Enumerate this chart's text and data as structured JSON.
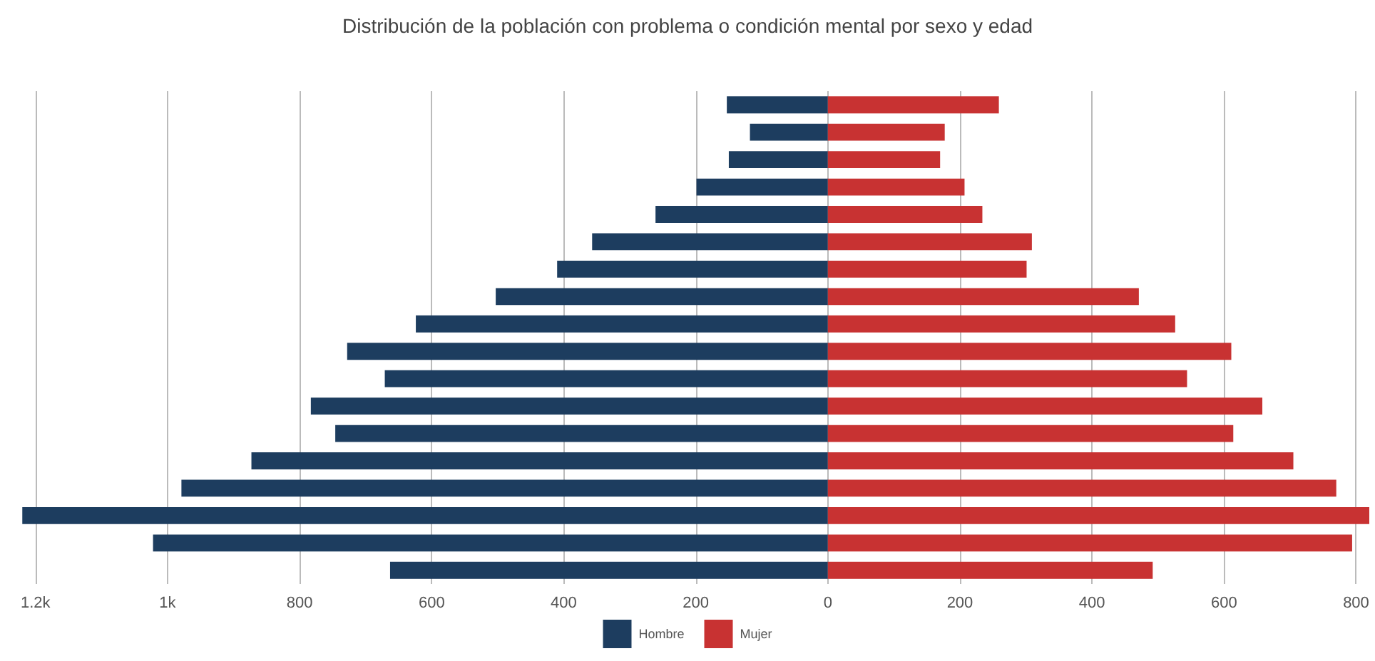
{
  "chart_data": {
    "type": "bar",
    "title": "Distribución de la población con problema o condición mental por sexo y edad",
    "orientation": "horizontal",
    "stacked": true,
    "categories": [
      null,
      null,
      null,
      null,
      null,
      null,
      null,
      null,
      null,
      null,
      null,
      null,
      null,
      null,
      null,
      null,
      null,
      null
    ],
    "series": [
      {
        "name": "Hombre",
        "color": "#1d3d5f",
        "values": [
          -153,
          -118,
          -150,
          -199,
          -261,
          -357,
          -410,
          -503,
          -624,
          -728,
          -671,
          -783,
          -746,
          -873,
          -979,
          -1220,
          -1022,
          -663
        ]
      },
      {
        "name": "Mujer",
        "color": "#c83232",
        "values": [
          259,
          177,
          170,
          207,
          234,
          309,
          301,
          471,
          526,
          611,
          544,
          658,
          614,
          705,
          770,
          820,
          794,
          492
        ]
      }
    ],
    "xlim": [
      -1230,
      820
    ],
    "xticks": [
      {
        "value": -1200,
        "label": "1.2k"
      },
      {
        "value": -1000,
        "label": "1k"
      },
      {
        "value": -800,
        "label": "800"
      },
      {
        "value": -600,
        "label": "600"
      },
      {
        "value": -400,
        "label": "400"
      },
      {
        "value": -200,
        "label": "200"
      },
      0,
      200,
      400,
      600,
      800
    ],
    "grid": "x",
    "legend": "bottom"
  }
}
